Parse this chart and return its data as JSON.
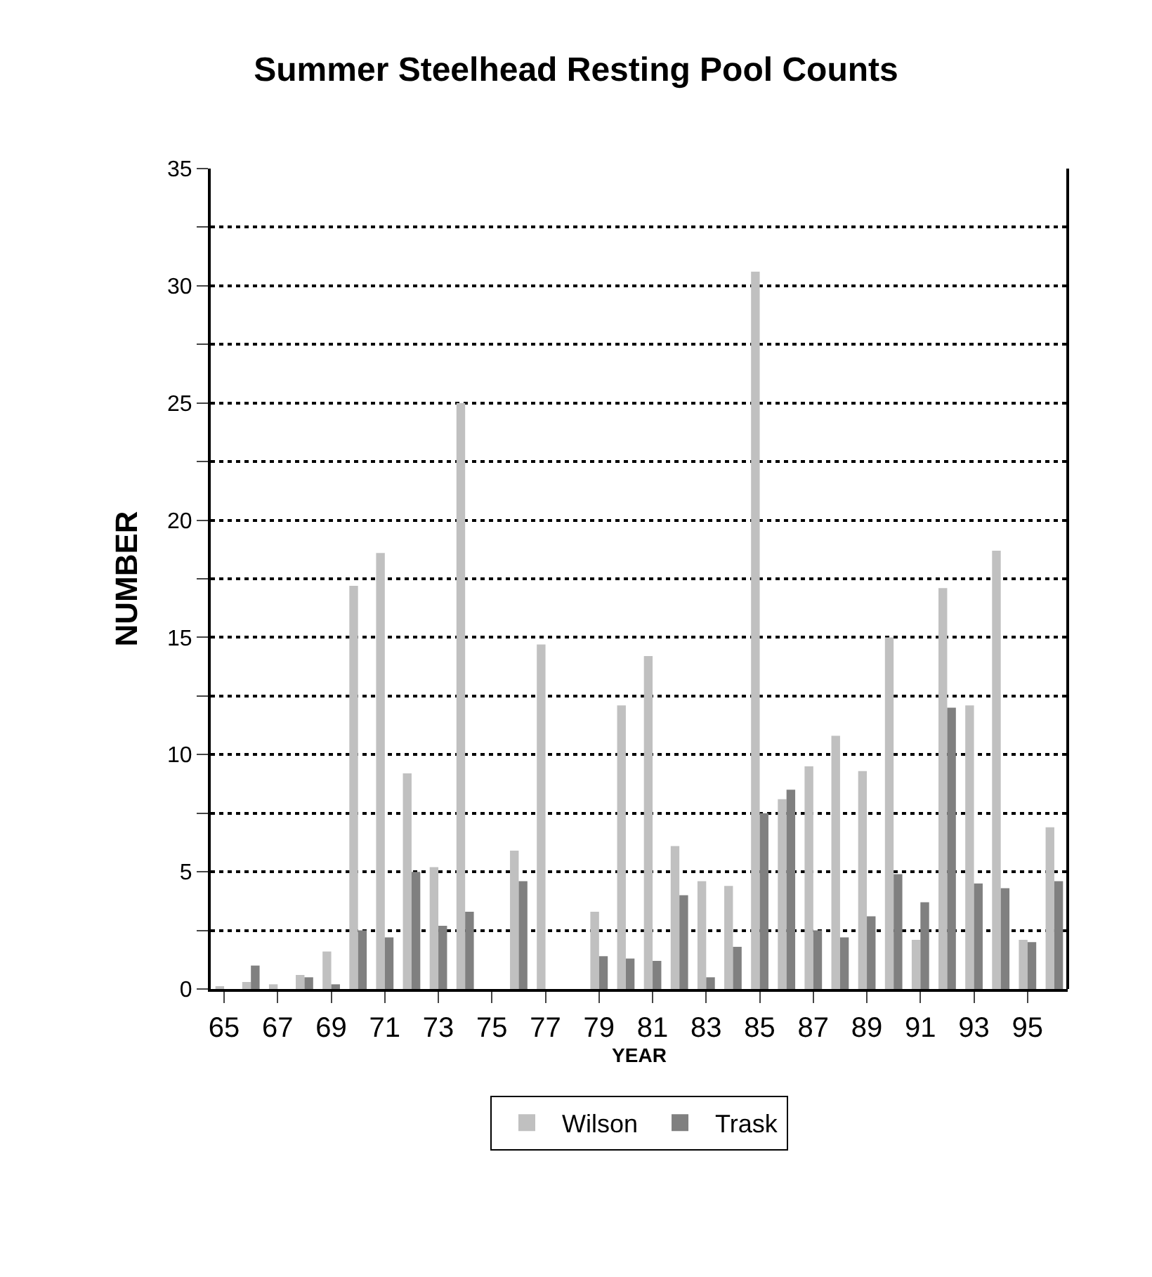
{
  "chart_data": {
    "type": "bar",
    "title": "Summer Steelhead Resting Pool Counts",
    "xlabel": "YEAR",
    "ylabel": "NUMBER",
    "categories": [
      "65",
      null,
      "67",
      null,
      "69",
      null,
      "71",
      null,
      "73",
      null,
      "75",
      null,
      "77",
      null,
      "79",
      null,
      "81",
      null,
      "83",
      null,
      "85",
      null,
      "87",
      null,
      "89",
      null,
      "91",
      null,
      "93",
      null,
      "95",
      null
    ],
    "series": [
      {
        "name": "Wilson",
        "color": "#c0c0c0",
        "values": [
          0.1,
          0.3,
          0.2,
          0.6,
          1.6,
          17.2,
          18.6,
          9.2,
          5.2,
          25.0,
          0,
          5.9,
          14.7,
          0,
          3.3,
          12.1,
          14.2,
          6.1,
          4.6,
          4.4,
          30.6,
          8.1,
          9.5,
          10.8,
          9.3,
          15.0,
          2.1,
          17.1,
          12.1,
          18.7,
          2.1,
          6.9
        ]
      },
      {
        "name": "Trask",
        "color": "#808080",
        "values": [
          0,
          1.0,
          0,
          0.5,
          0.2,
          2.5,
          2.2,
          5.0,
          2.7,
          3.3,
          0,
          4.6,
          0,
          0,
          1.4,
          1.3,
          1.2,
          4.0,
          0.5,
          1.8,
          7.5,
          8.5,
          2.5,
          2.2,
          3.1,
          4.9,
          3.7,
          12.0,
          4.5,
          4.3,
          2.0,
          4.6
        ]
      }
    ],
    "ylim": [
      0,
      35
    ],
    "yticks": [
      0,
      {
        "value": 2.5,
        "label": null
      },
      5,
      {
        "value": 7.5,
        "label": null
      },
      10,
      {
        "value": 12.5,
        "label": null
      },
      15,
      {
        "value": 17.5,
        "label": null
      },
      20,
      {
        "value": 22.5,
        "label": null
      },
      25,
      {
        "value": 27.5,
        "label": null
      },
      30,
      {
        "value": 32.5,
        "label": null
      },
      35
    ],
    "grid": "y",
    "legend": "bottom"
  }
}
